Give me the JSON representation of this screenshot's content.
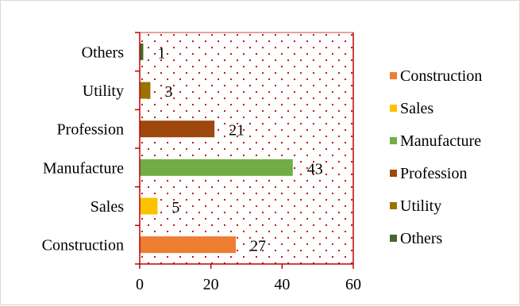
{
  "chart_data": {
    "type": "bar",
    "orientation": "horizontal",
    "categories": [
      "Construction",
      "Sales",
      "Manufacture",
      "Profession",
      "Utility",
      "Others"
    ],
    "values": [
      27,
      5,
      43,
      21,
      3,
      1
    ],
    "colors": [
      "#ED7D31",
      "#FFC000",
      "#70AD47",
      "#9E480E",
      "#997300",
      "#43682B"
    ],
    "xlim": [
      0,
      60
    ],
    "xticks": [
      0,
      20,
      40,
      60
    ],
    "data_labels": [
      "27",
      "5",
      "43",
      "21",
      "3",
      "1"
    ],
    "legend": {
      "position": "right",
      "entries": [
        "Construction",
        "Sales",
        "Manufacture",
        "Profession",
        "Utility",
        "Others"
      ]
    },
    "plot_background": "dotted red pattern",
    "axis_color": "#C00000",
    "title": "",
    "xlabel": "",
    "ylabel": ""
  }
}
